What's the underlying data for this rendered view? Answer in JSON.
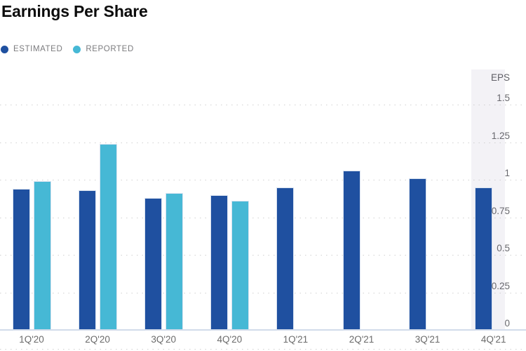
{
  "header": {
    "title": "Earnings Per Share"
  },
  "legend": [
    {
      "label": "ESTIMATED",
      "color": "#1f50a0"
    },
    {
      "label": "REPORTED",
      "color": "#46b8d5"
    }
  ],
  "chart_data": {
    "type": "bar",
    "title": "Earnings Per Share",
    "categories": [
      "1Q'20",
      "2Q'20",
      "3Q'20",
      "4Q'20",
      "1Q'21",
      "2Q'21",
      "3Q'21",
      "4Q'21"
    ],
    "series": [
      {
        "name": "ESTIMATED",
        "color": "#1f50a0",
        "values": [
          0.94,
          0.93,
          0.88,
          0.9,
          0.95,
          1.06,
          1.01,
          0.95
        ]
      },
      {
        "name": "REPORTED",
        "color": "#46b8d5",
        "values": [
          0.99,
          1.24,
          0.91,
          0.86,
          null,
          null,
          null,
          null
        ]
      }
    ],
    "ylabel": "EPS",
    "xlabel": "",
    "ylim": [
      0,
      1.5
    ],
    "ytick_labels": [
      "0",
      "0.25",
      "0.5",
      "0.75",
      "1",
      "1.25",
      "1.5"
    ],
    "yticks": [
      0,
      0.25,
      0.5,
      0.75,
      1,
      1.25,
      1.5
    ],
    "grid": "dotted-horizontal",
    "axis_side": "right",
    "legend_position": "top-left",
    "highlighted_category": "4Q'21"
  },
  "colors": {
    "estimated": "#1f50a0",
    "reported": "#46b8d5",
    "highlight_panel": "#f3f2f6",
    "axis_line": "#d2dbea",
    "gridline": "#c9c9c9",
    "tick_text": "#68686e",
    "legend_text": "#7b7b7e",
    "title_text": "#0c0c0c"
  }
}
